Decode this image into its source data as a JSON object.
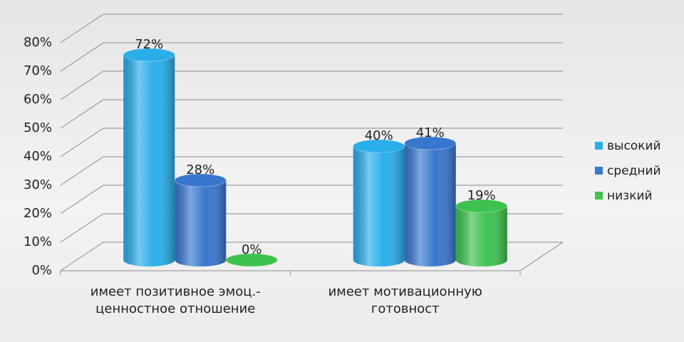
{
  "chart_data": {
    "type": "bar3d",
    "categories": [
      "имеет позитивное эмоц.-ценностное отношение",
      "имеет мотивационную готовност"
    ],
    "series": [
      {
        "name": "высокий",
        "color": "#2aaeea",
        "values": [
          72,
          40
        ],
        "value_labels": [
          "72%",
          "40%"
        ]
      },
      {
        "name": "средний",
        "color": "#3877cf",
        "values": [
          28,
          41
        ],
        "value_labels": [
          "28%",
          "41%"
        ]
      },
      {
        "name": "низкий",
        "color": "#3ec24e",
        "values": [
          0,
          19
        ],
        "value_labels": [
          "0%",
          "19%"
        ]
      }
    ],
    "ylim": [
      0,
      80
    ],
    "yticks": [
      {
        "value": 0,
        "label": "0%"
      },
      {
        "value": 10,
        "label": "10%"
      },
      {
        "value": 20,
        "label": "20%"
      },
      {
        "value": 30,
        "label": "30%"
      },
      {
        "value": 40,
        "label": "40%"
      },
      {
        "value": 50,
        "label": "50%"
      },
      {
        "value": 60,
        "label": "60%"
      },
      {
        "value": 70,
        "label": "70%"
      },
      {
        "value": 80,
        "label": "80%"
      }
    ],
    "grid": true,
    "legend": "right"
  }
}
